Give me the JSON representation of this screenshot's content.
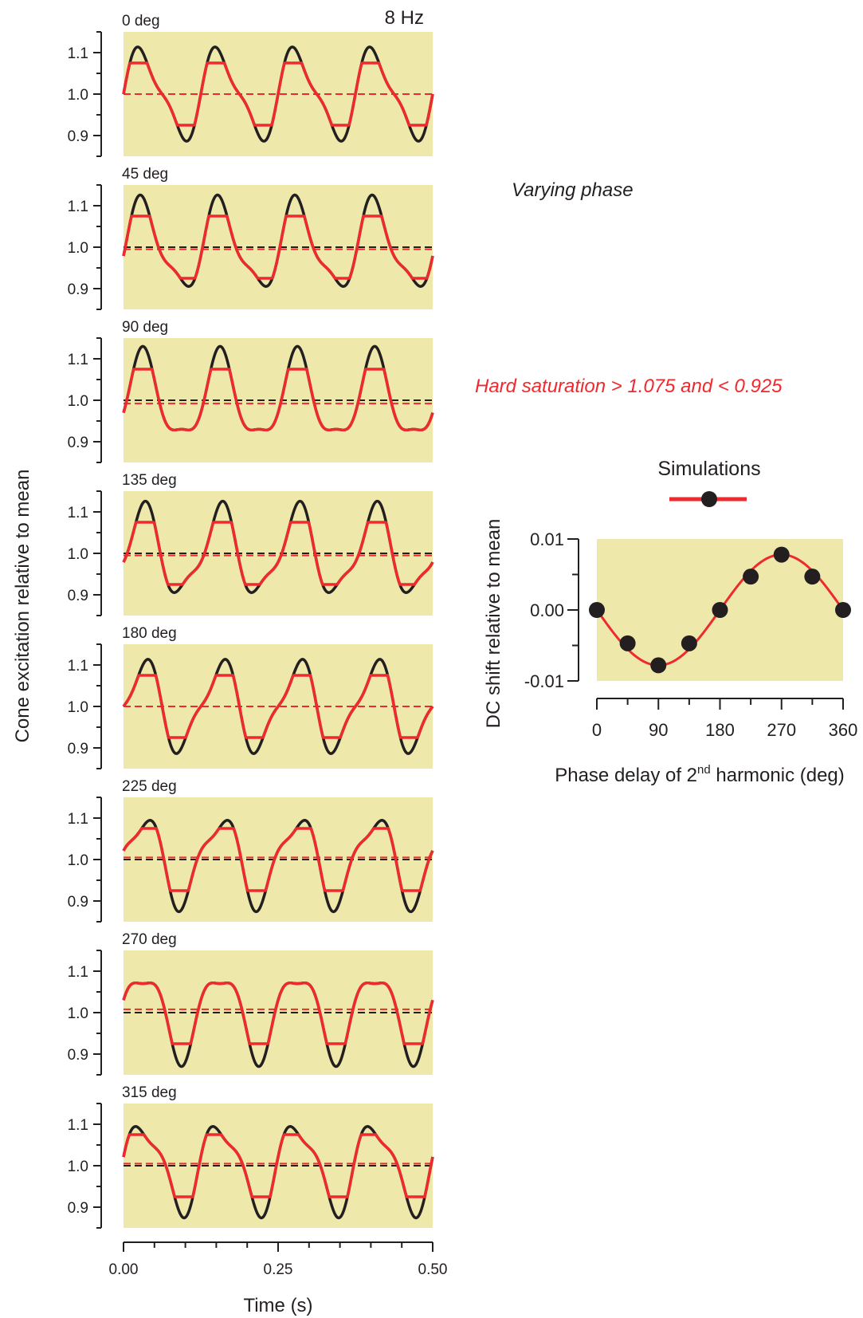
{
  "colors": {
    "plot_background": "#eee8aa",
    "stimulus": "#231f20",
    "response": "#ee2a2e",
    "marker": "#231f20"
  },
  "annotations": {
    "varying_phase": "Varying phase",
    "saturation": "Hard saturation > 1.075 and < 0.925"
  },
  "chart_data": [
    {
      "type": "line",
      "id": "traces",
      "frequency_label": "8 Hz",
      "ylabel": "Cone excitation relative to mean",
      "xlabel": "Time (s)",
      "xlim": [
        0,
        0.5
      ],
      "ylim": [
        0.85,
        1.15
      ],
      "x_ticks": [
        "0.00",
        "0.25",
        "0.50"
      ],
      "y_ticks": [
        "1.1",
        "1.0",
        "0.9"
      ],
      "frequency_hz": 8,
      "saturation": {
        "upper": 1.075,
        "lower": 0.925
      },
      "panels": [
        {
          "title": "0 deg",
          "phase_deg": 0,
          "dc_shift": 0.0
        },
        {
          "title": "45 deg",
          "phase_deg": 45,
          "dc_shift": -0.005
        },
        {
          "title": "90 deg",
          "phase_deg": 90,
          "dc_shift": -0.008
        },
        {
          "title": "135 deg",
          "phase_deg": 135,
          "dc_shift": -0.005
        },
        {
          "title": "180 deg",
          "phase_deg": 180,
          "dc_shift": 0.0
        },
        {
          "title": "225 deg",
          "phase_deg": 225,
          "dc_shift": 0.005
        },
        {
          "title": "270 deg",
          "phase_deg": 270,
          "dc_shift": 0.008
        },
        {
          "title": "315 deg",
          "phase_deg": 315,
          "dc_shift": 0.005
        }
      ]
    },
    {
      "type": "scatter",
      "id": "dc-shift",
      "legend_title": "Simulations",
      "ylabel": "DC shift relative to mean",
      "xlabel_main": "Phase delay of 2",
      "xlabel_sup": "nd",
      "xlabel_tail": " harmonic (deg)",
      "xlim": [
        0,
        360
      ],
      "ylim": [
        -0.01,
        0.01
      ],
      "x_ticks": [
        "0",
        "90",
        "180",
        "270",
        "360"
      ],
      "y_ticks": [
        "0.01",
        "0.00",
        "-0.01"
      ],
      "x": [
        0,
        45,
        90,
        135,
        180,
        225,
        270,
        315,
        360
      ],
      "y": [
        0.0,
        -0.0047,
        -0.0078,
        -0.0047,
        0.0,
        0.0047,
        0.0078,
        0.0047,
        0.0
      ]
    }
  ]
}
